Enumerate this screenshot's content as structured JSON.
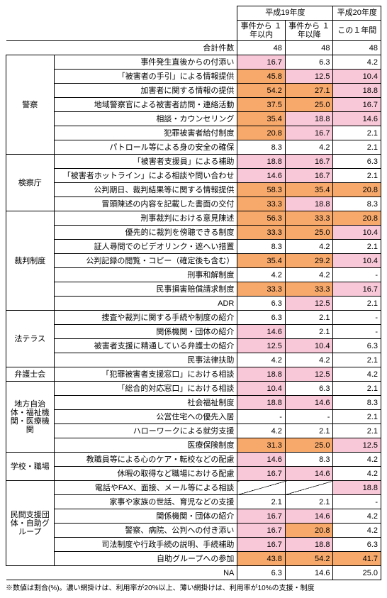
{
  "header": {
    "h19": "平成19年度",
    "h20": "平成20年度",
    "sub1": "事件から\n１年以内",
    "sub2": "事件から\n１年以降",
    "sub3": "この１年間",
    "total_label": "合計件数",
    "total_v1": "48",
    "total_v2": "48",
    "total_v3": "48"
  },
  "colors": {
    "orange_hex": "#f7a96b",
    "pink_hex": "#f8c8d8",
    "orange_threshold": 20,
    "pink_threshold": 10
  },
  "categories": [
    {
      "name": "警察",
      "rows": [
        {
          "label": "事件発生直後からの付添い",
          "v": [
            16.7,
            6.3,
            4.2
          ]
        },
        {
          "label": "「被害者の手引」による情報提供",
          "v": [
            45.8,
            12.5,
            10.4
          ]
        },
        {
          "label": "加害者に関する情報の提供",
          "v": [
            54.2,
            27.1,
            18.8
          ]
        },
        {
          "label": "地域警察官による被害者訪問・連絡活動",
          "v": [
            37.5,
            25.0,
            16.7
          ]
        },
        {
          "label": "相談・カウンセリング",
          "v": [
            35.4,
            18.8,
            14.6
          ]
        },
        {
          "label": "犯罪被害者給付制度",
          "v": [
            20.8,
            16.7,
            2.1
          ]
        },
        {
          "label": "パトロール等による身の安全の確保",
          "v": [
            8.3,
            4.2,
            2.1
          ]
        }
      ]
    },
    {
      "name": "検察庁",
      "rows": [
        {
          "label": "「被害者支援員」による補助",
          "v": [
            18.8,
            16.7,
            6.3
          ]
        },
        {
          "label": "「被害者ホットライン」による相談や問い合わせ",
          "v": [
            14.6,
            16.7,
            2.1
          ]
        },
        {
          "label": "公判期日、裁判結果等に関する情報提供",
          "v": [
            58.3,
            35.4,
            20.8
          ]
        },
        {
          "label": "冒頭陳述の内容を記載した書面の交付",
          "v": [
            33.3,
            18.8,
            8.3
          ]
        }
      ]
    },
    {
      "name": "裁判制度",
      "rows": [
        {
          "label": "刑事裁判における意見陳述",
          "v": [
            56.3,
            33.3,
            20.8
          ]
        },
        {
          "label": "優先的に裁判を傍聴できる制度",
          "v": [
            33.3,
            25.0,
            10.4
          ]
        },
        {
          "label": "証人尋問でのビデオリンク・遮へい措置",
          "v": [
            8.3,
            4.2,
            2.1
          ]
        },
        {
          "label": "公判記録の閲覧・コピー（確定後も含む）",
          "v": [
            35.4,
            29.2,
            10.4
          ]
        },
        {
          "label": "刑事和解制度",
          "v": [
            4.2,
            4.2,
            "-"
          ]
        },
        {
          "label": "民事損害賠償請求制度",
          "v": [
            33.3,
            33.3,
            16.7
          ]
        },
        {
          "label": "ADR",
          "v": [
            6.3,
            12.5,
            2.1
          ]
        }
      ]
    },
    {
      "name": "法テラス",
      "rows": [
        {
          "label": "捜査や裁判に関する手続や制度の紹介",
          "v": [
            6.3,
            2.1,
            "-"
          ]
        },
        {
          "label": "関係機関・団体の紹介",
          "v": [
            14.6,
            2.1,
            "-"
          ]
        },
        {
          "label": "被害者支援に精通している弁護士の紹介",
          "v": [
            12.5,
            10.4,
            6.3
          ]
        },
        {
          "label": "民事法律扶助",
          "v": [
            4.2,
            4.2,
            2.1
          ]
        }
      ]
    },
    {
      "name": "弁護士会",
      "rows": [
        {
          "label": "「犯罪被害者支援窓口」における相談",
          "v": [
            18.8,
            12.5,
            4.2
          ]
        }
      ]
    },
    {
      "name": "地方自治体・福祉機関・医療機関",
      "rows": [
        {
          "label": "「総合的対応窓口」における相談",
          "v": [
            10.4,
            6.3,
            2.1
          ]
        },
        {
          "label": "社会福祉制度",
          "v": [
            18.8,
            14.6,
            8.3
          ]
        },
        {
          "label": "公営住宅への優先入居",
          "v": [
            "-",
            "-",
            2.1
          ]
        },
        {
          "label": "ハローワークによる就労支援",
          "v": [
            4.2,
            2.1,
            2.1
          ]
        },
        {
          "label": "医療保険制度",
          "v": [
            31.3,
            25.0,
            12.5
          ]
        }
      ]
    },
    {
      "name": "学校・職場",
      "rows": [
        {
          "label": "教職員等による心のケア・転校などの配慮",
          "v": [
            14.6,
            8.3,
            4.2
          ]
        },
        {
          "label": "休暇の取得など職場における配慮",
          "v": [
            16.7,
            14.6,
            4.2
          ]
        }
      ]
    },
    {
      "name": "民間支援団体・自助グループ",
      "rows": [
        {
          "label": "電話やFAX、面接、メール等による相談",
          "v": [
            "diag",
            "diag",
            18.8
          ]
        },
        {
          "label": "家事や家族の世話、育児などの支援",
          "v": [
            2.1,
            2.1,
            "-"
          ]
        },
        {
          "label": "関係機関・団体の紹介",
          "v": [
            16.7,
            14.6,
            4.2
          ]
        },
        {
          "label": "警察、病院、公判への付き添い",
          "v": [
            16.7,
            20.8,
            4.2
          ]
        },
        {
          "label": "司法制度や行政手続の説明、手続補助",
          "v": [
            16.7,
            18.8,
            6.3
          ]
        },
        {
          "label": "自助グループへの参加",
          "v": [
            43.8,
            54.2,
            41.7
          ]
        }
      ]
    }
  ],
  "na_row": {
    "label": "NA",
    "v": [
      6.3,
      14.6,
      25.0
    ]
  },
  "footnote": "※数値は割合(%)。濃い網掛けは、利用率が20%以上、薄い網掛けは、利用率が10%の支援・制度"
}
